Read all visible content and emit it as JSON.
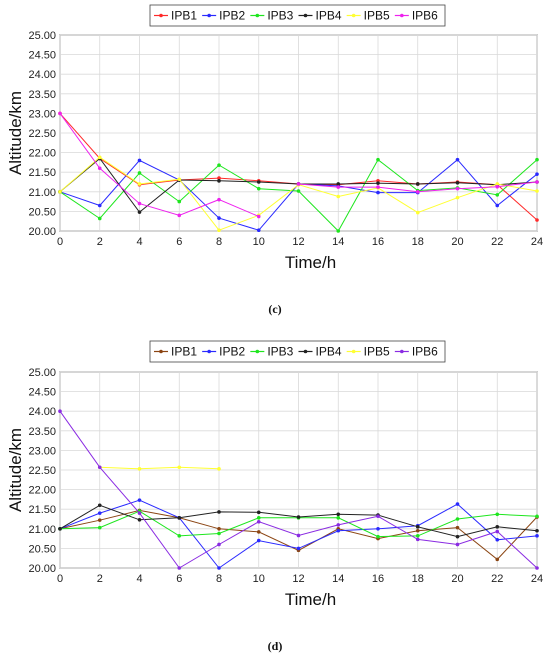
{
  "chart_data": [
    {
      "type": "line",
      "panel_label": "(c)",
      "xlabel": "Time/h",
      "ylabel": "Altitude/km",
      "xlim": [
        0,
        24
      ],
      "ylim": [
        20.0,
        25.0
      ],
      "x_ticks": [
        "0",
        "2",
        "4",
        "6",
        "8",
        "10",
        "12",
        "14",
        "16",
        "18",
        "20",
        "22",
        "24"
      ],
      "y_ticks": [
        "20.00",
        "20.50",
        "21.00",
        "21.50",
        "22.00",
        "22.50",
        "23.00",
        "23.50",
        "24.00",
        "24.50",
        "25.00"
      ],
      "grid": true,
      "legend_position": "top",
      "series": [
        {
          "name": "IPB1",
          "color": "#ff2a2a",
          "x": [
            0,
            2,
            4,
            6,
            8,
            10,
            12,
            14,
            16,
            18,
            20,
            22,
            24
          ],
          "y": [
            23.0,
            21.85,
            21.18,
            21.3,
            21.35,
            21.28,
            21.2,
            21.18,
            21.28,
            21.2,
            21.25,
            21.18,
            20.28
          ]
        },
        {
          "name": "IPB2",
          "color": "#2a2aff",
          "x": [
            0,
            2,
            4,
            6,
            8,
            10,
            12,
            14,
            16,
            18,
            20,
            22,
            24
          ],
          "y": [
            21.0,
            20.65,
            21.8,
            21.3,
            20.33,
            20.02,
            21.2,
            21.15,
            20.98,
            20.98,
            21.82,
            20.65,
            21.45
          ]
        },
        {
          "name": "IPB3",
          "color": "#1ee61e",
          "x": [
            0,
            2,
            4,
            6,
            8,
            10,
            12,
            14,
            16,
            18,
            20,
            22,
            24
          ],
          "y": [
            21.0,
            20.32,
            21.48,
            20.75,
            21.68,
            21.08,
            21.02,
            20.0,
            21.82,
            21.03,
            21.1,
            20.92,
            21.82
          ]
        },
        {
          "name": "IPB4",
          "color": "#222222",
          "x": [
            0,
            2,
            4,
            6,
            8,
            10,
            12,
            14,
            16,
            18,
            20,
            22,
            24
          ],
          "y": [
            21.0,
            21.85,
            20.48,
            21.3,
            21.28,
            21.25,
            21.2,
            21.2,
            21.22,
            21.2,
            21.23,
            21.18,
            21.25
          ]
        },
        {
          "name": "IPB5",
          "color": "#ffff33",
          "x": [
            0,
            2,
            4,
            6,
            8,
            10,
            12,
            14,
            16,
            18,
            20,
            22,
            24
          ],
          "y": [
            21.0,
            21.88,
            21.2,
            21.32,
            20.02,
            20.4,
            21.18,
            20.88,
            21.1,
            20.47,
            20.85,
            21.2,
            21.02
          ]
        },
        {
          "name": "IPB6",
          "color": "#ee22ee",
          "x": [
            0,
            2,
            4,
            6,
            8,
            10
          ],
          "y": [
            23.0,
            21.6,
            20.7,
            20.4,
            20.8,
            20.37
          ]
        },
        {
          "name": "",
          "color": "#ee22ee",
          "x": [
            12,
            14,
            16,
            18,
            20,
            22,
            24
          ],
          "y": [
            21.2,
            21.12,
            21.12,
            21.0,
            21.08,
            21.13,
            21.25
          ]
        }
      ]
    },
    {
      "type": "line",
      "panel_label": "(d)",
      "xlabel": "Time/h",
      "ylabel": "Altitude/km",
      "xlim": [
        0,
        24
      ],
      "ylim": [
        20.0,
        25.0
      ],
      "x_ticks": [
        "0",
        "2",
        "4",
        "6",
        "8",
        "10",
        "12",
        "14",
        "16",
        "18",
        "20",
        "22",
        "24"
      ],
      "y_ticks": [
        "20.00",
        "20.50",
        "21.00",
        "21.50",
        "22.00",
        "22.50",
        "23.00",
        "23.50",
        "24.00",
        "24.50",
        "25.00"
      ],
      "grid": true,
      "legend_position": "top",
      "series": [
        {
          "name": "IPB1",
          "color": "#8b4513",
          "x": [
            0,
            2,
            4,
            6,
            8,
            10,
            12,
            14,
            16,
            18,
            20,
            22,
            24
          ],
          "y": [
            21.0,
            21.22,
            21.47,
            21.28,
            21.0,
            20.92,
            20.45,
            21.0,
            20.75,
            20.95,
            21.03,
            20.22,
            21.3
          ]
        },
        {
          "name": "IPB2",
          "color": "#2a2aff",
          "x": [
            0,
            2,
            4,
            6,
            8,
            10,
            12,
            14,
            16,
            18,
            20,
            22,
            24
          ],
          "y": [
            21.0,
            21.4,
            21.73,
            21.28,
            20.0,
            20.7,
            20.5,
            20.95,
            21.0,
            21.08,
            21.63,
            20.72,
            20.82
          ]
        },
        {
          "name": "IPB3",
          "color": "#1ee61e",
          "x": [
            0,
            2,
            4,
            6,
            8,
            10,
            12,
            14,
            16,
            18,
            20,
            22,
            24
          ],
          "y": [
            21.0,
            21.03,
            21.45,
            20.82,
            20.88,
            21.28,
            21.28,
            21.28,
            20.8,
            20.82,
            21.25,
            21.37,
            21.32
          ]
        },
        {
          "name": "IPB4",
          "color": "#222222",
          "x": [
            0,
            2,
            4,
            6,
            8,
            10,
            12,
            14,
            16,
            18,
            20,
            22,
            24
          ],
          "y": [
            21.0,
            21.6,
            21.23,
            21.28,
            21.43,
            21.42,
            21.3,
            21.37,
            21.35,
            21.05,
            20.8,
            21.05,
            20.95
          ]
        },
        {
          "name": "IPB5",
          "color": "#ffff33",
          "x": [
            2,
            4,
            6,
            8
          ],
          "y": [
            22.57,
            22.53,
            22.57,
            22.53
          ]
        },
        {
          "name": "IPB6",
          "color": "#8a2be2",
          "x": [
            0,
            2,
            4,
            6,
            8,
            10,
            12,
            14,
            16,
            18,
            20,
            22,
            24
          ],
          "y": [
            24.0,
            22.57,
            21.4,
            20.0,
            20.6,
            21.18,
            20.83,
            21.1,
            21.32,
            20.73,
            20.6,
            20.93,
            20.0
          ]
        }
      ]
    }
  ]
}
